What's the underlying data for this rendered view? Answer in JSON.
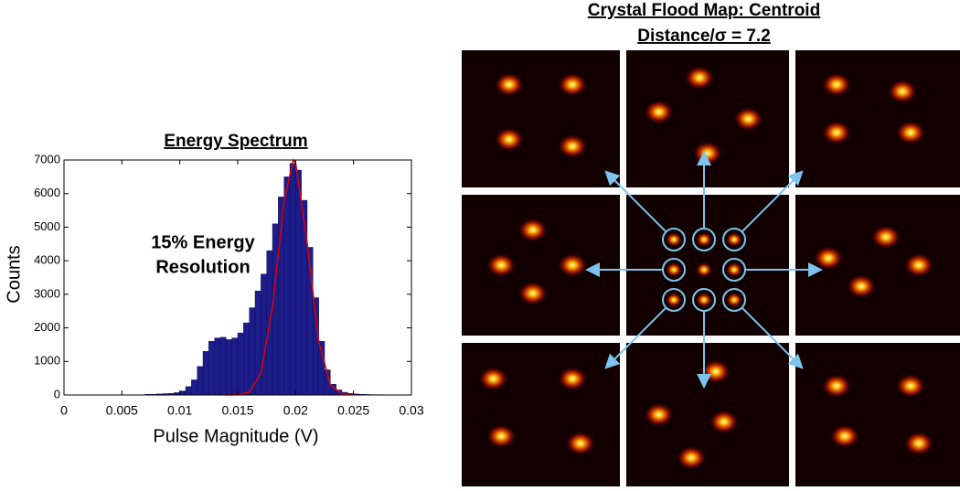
{
  "chart_data": {
    "type": "histogram",
    "title": "Energy Spectrum",
    "x_label": "Pulse Magnitude (V)",
    "y_label": "Counts",
    "annotation": [
      "15% Energy",
      "Resolution"
    ],
    "bins": [
      0.005,
      0.0055,
      0.006,
      0.0065,
      0.007,
      0.0075,
      0.008,
      0.0085,
      0.009,
      0.0095,
      0.01,
      0.0105,
      0.011,
      0.0115,
      0.012,
      0.0125,
      0.013,
      0.0135,
      0.014,
      0.0145,
      0.015,
      0.0155,
      0.016,
      0.0165,
      0.017,
      0.0175,
      0.018,
      0.0185,
      0.019,
      0.0195,
      0.02,
      0.0205,
      0.021,
      0.0215,
      0.022,
      0.0225,
      0.023,
      0.0235,
      0.024,
      0.0245,
      0.025,
      0.0255,
      0.026,
      0.0265,
      0.027,
      0.0275,
      0.028,
      0.0285,
      0.029,
      0.0295,
      0.03
    ],
    "values": [
      0,
      0,
      0,
      0,
      20,
      20,
      30,
      40,
      50,
      70,
      120,
      250,
      450,
      850,
      1300,
      1600,
      1700,
      1720,
      1650,
      1700,
      1850,
      2150,
      2600,
      3100,
      3600,
      4300,
      5100,
      5900,
      6500,
      6900,
      6700,
      5800,
      4400,
      2900,
      1600,
      750,
      320,
      150,
      80,
      50,
      30,
      20,
      15,
      10,
      10,
      5,
      5,
      0,
      0,
      0
    ],
    "color": "#1c1c8a",
    "fit": {
      "x": [
        0.014,
        0.015,
        0.016,
        0.017,
        0.018,
        0.019,
        0.0198,
        0.02,
        0.021,
        0.022,
        0.023,
        0.024,
        0.025
      ],
      "values": [
        0,
        6,
        85,
        640,
        2600,
        5760,
        7000,
        6915,
        4510,
        1595,
        305,
        32,
        2
      ],
      "color": "#e00000"
    },
    "xlim": [
      0,
      0.03
    ],
    "xticks": [
      0,
      0.005,
      0.01,
      0.015,
      0.02,
      0.025,
      0.03
    ],
    "ylim": [
      0,
      7000
    ],
    "yticks": [
      0,
      1000,
      2000,
      3000,
      4000,
      5000,
      6000,
      7000
    ]
  },
  "flood_map": {
    "title": "Crystal Flood Map: Centroid",
    "subtitle": "Distance/σ = 7.2"
  }
}
